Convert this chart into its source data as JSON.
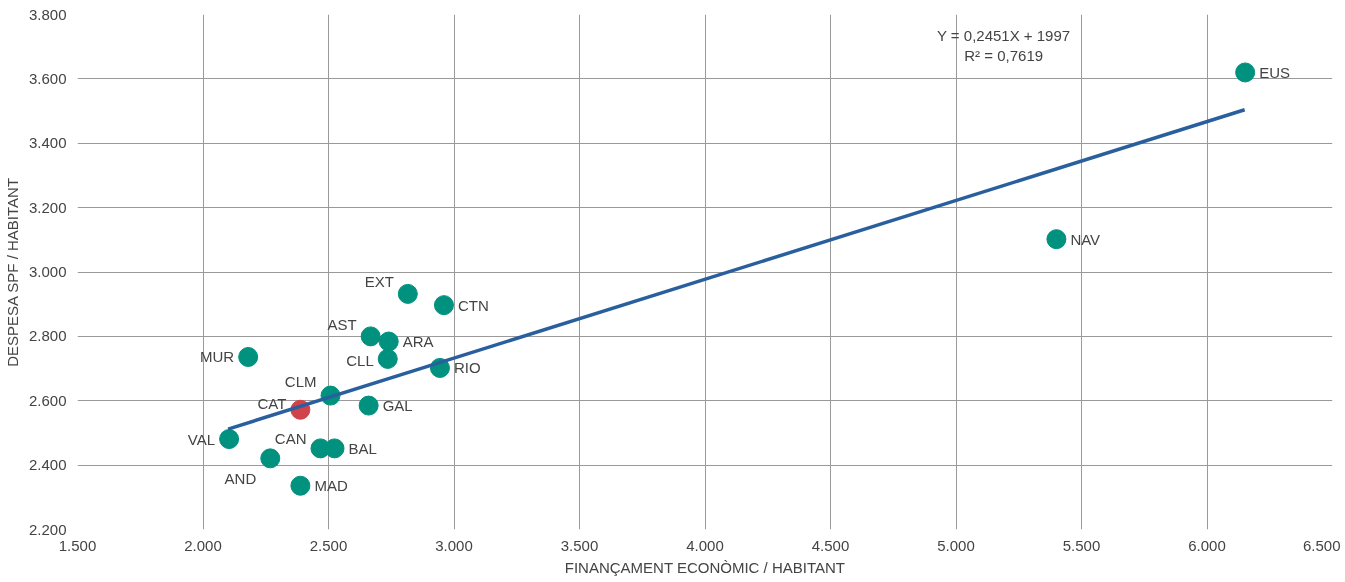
{
  "chart_data": {
    "type": "scatter",
    "xlabel": "FINANÇAMENT ECONÒMIC / HABITANT",
    "ylabel": "DESPESA SPF / HABITANT",
    "xlim": [
      1500,
      6500
    ],
    "ylim": [
      2200,
      3800
    ],
    "xticks": [
      {
        "value": 1500,
        "label": "1.500"
      },
      {
        "value": 2000,
        "label": "2.000"
      },
      {
        "value": 2500,
        "label": "2.500"
      },
      {
        "value": 3000,
        "label": "3.000"
      },
      {
        "value": 3500,
        "label": "3.500"
      },
      {
        "value": 4000,
        "label": "4.000"
      },
      {
        "value": 4500,
        "label": "4.500"
      },
      {
        "value": 5000,
        "label": "5.000"
      },
      {
        "value": 5500,
        "label": "5.500"
      },
      {
        "value": 6000,
        "label": "6.000"
      },
      {
        "value": 6500,
        "label": "6.500"
      }
    ],
    "yticks": [
      {
        "value": 2200,
        "label": "2.200"
      },
      {
        "value": 2400,
        "label": "2.400"
      },
      {
        "value": 2600,
        "label": "2.600"
      },
      {
        "value": 2800,
        "label": "2.800"
      },
      {
        "value": 3000,
        "label": "3.000"
      },
      {
        "value": 3200,
        "label": "3.200"
      },
      {
        "value": 3400,
        "label": "3.400"
      },
      {
        "value": 3600,
        "label": "3.600"
      },
      {
        "value": 3800,
        "label": "3.800"
      }
    ],
    "grid": true,
    "marker": "circle",
    "series": [
      {
        "type": "scatter",
        "x": [
          6152,
          5400,
          2816,
          2960,
          2668,
          2740,
          2736,
          2944,
          2180,
          2508,
          2388,
          2660,
          2104,
          2468,
          2524,
          2268,
          2388
        ],
        "values": [
          3620,
          3102,
          2932,
          2897,
          2800,
          2784,
          2730,
          2702,
          2736,
          2616,
          2572,
          2585,
          2481,
          2452,
          2452,
          2421,
          2336
        ],
        "value_labels": [
          "EUS",
          "NAV",
          "EXT",
          "CTN",
          "AST",
          "ARA",
          "CLL",
          "RIO",
          "MUR",
          "CLM",
          "CAT",
          "GAL",
          "VAL",
          "CAN",
          "BAL",
          "AND",
          "MAD"
        ],
        "colors": [
          "#00917f",
          "#00917f",
          "#00917f",
          "#00917f",
          "#00917f",
          "#00917f",
          "#00917f",
          "#00917f",
          "#00917f",
          "#00917f",
          "#d1434a",
          "#00917f",
          "#00917f",
          "#00917f",
          "#00917f",
          "#00917f",
          "#00917f"
        ]
      },
      {
        "type": "line",
        "marker": "none",
        "color": "#2a5f9e",
        "x": [
          2100,
          6150
        ],
        "values": [
          2512,
          3504
        ]
      }
    ],
    "annotations": [
      "Y = 0,2451X + 1997",
      "R² = 0,7619"
    ]
  }
}
